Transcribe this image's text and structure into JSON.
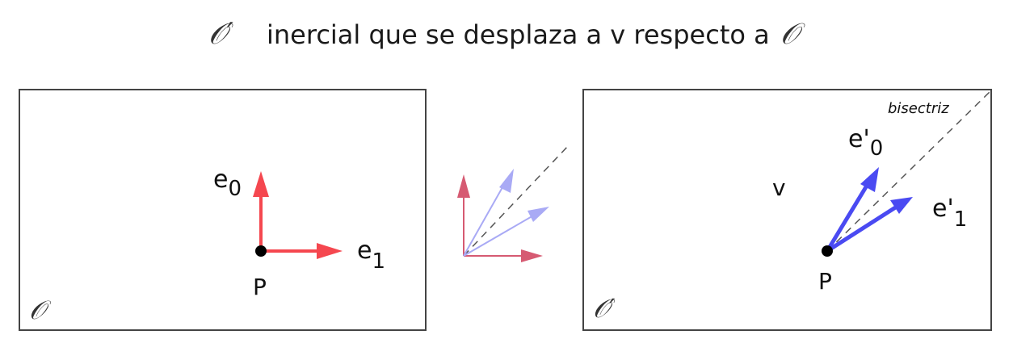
{
  "title": {
    "symbol_primed": "𝒪′",
    "text": "inercial que se desplaza a v respecto a",
    "symbol": "𝒪"
  },
  "left_frame": {
    "label": "𝒪",
    "point_label": "P",
    "e0": {
      "base": "e",
      "sub": "0"
    },
    "e1": {
      "base": "e",
      "sub": "1"
    }
  },
  "right_frame": {
    "label": "𝒪′",
    "point_label": "P",
    "velocity_label": "v",
    "bisector_label": "bisectriz",
    "e0p": {
      "base": "e'",
      "sub": "0"
    },
    "e1p": {
      "base": "e'",
      "sub": "1"
    }
  },
  "colors": {
    "red": "#f5474f",
    "pale_red": "#d65a72",
    "blue": "#4a4af2",
    "pale_blue": "#a9aaf5",
    "frame": "#444444",
    "dashed": "#555555"
  }
}
